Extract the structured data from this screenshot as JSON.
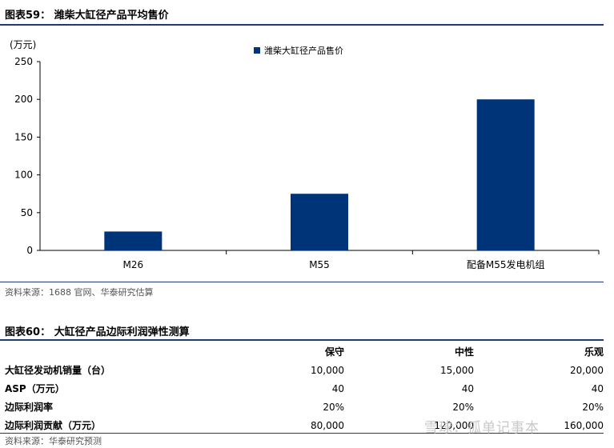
{
  "figure1": {
    "title": "图表59：   潍柴大缸径产品平均售价",
    "source": "资料来源：1688 官网、华泰研究估算"
  },
  "chart_data": {
    "type": "bar",
    "title": "",
    "ylabel": "(万元)",
    "xlabel": "",
    "categories": [
      "M26",
      "M55",
      "配备M55发电机组"
    ],
    "series": [
      {
        "name": "潍柴大缸径产品售价",
        "values": [
          25,
          75,
          200
        ],
        "color": "#003478"
      }
    ],
    "ylim": [
      0,
      250
    ],
    "yticks": [
      0,
      50,
      100,
      150,
      200,
      250
    ],
    "grid": false,
    "legend": "top-center"
  },
  "figure2": {
    "title": "图表60：   大缸径产品边际利润弹性测算",
    "source": "资料来源：华泰研究预测"
  },
  "table": {
    "headers": [
      "",
      "保守",
      "中性",
      "乐观"
    ],
    "rows": [
      {
        "label": "大缸径发动机销量（台）",
        "values": [
          "10,000",
          "15,000",
          "20,000"
        ]
      },
      {
        "label": "ASP（万元）",
        "values": [
          "40",
          "40",
          "40"
        ]
      },
      {
        "label": "边际利润率",
        "values": [
          "20%",
          "20%",
          "20%"
        ]
      },
      {
        "label": "边际利润贡献（万元）",
        "values": [
          "80,000",
          "120,000",
          "160,000"
        ]
      }
    ]
  },
  "watermark": "雪球：孤单记事本"
}
